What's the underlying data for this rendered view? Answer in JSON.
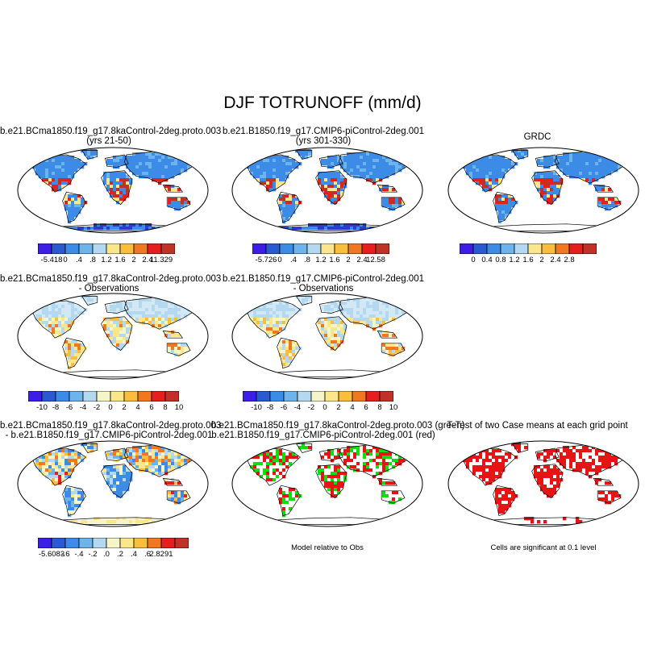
{
  "title": "DJF TOTRUNOFF (mm/d)",
  "panels": [
    {
      "title1": "b.e21.BCma1850.f19_g17.8kaControl-2deg.proto.003",
      "title2": "(yrs 21-50)",
      "style": "abs"
    },
    {
      "title1": "b.e21.B1850.f19_g17.CMIP6-piControl-2deg.001",
      "title2": "(yrs 301-330)",
      "style": "abs"
    },
    {
      "title1": "GRDC",
      "title2": "",
      "style": "obs"
    },
    {
      "title1": "b.e21.BCma1850.f19_g17.8kaControl-2deg.proto.003",
      "title2": "- Observations",
      "style": "diff"
    },
    {
      "title1": "b.e21.B1850.f19_g17.CMIP6-piControl-2deg.001",
      "title2": "- Observations",
      "style": "diff"
    },
    {
      "title1": "b.e21.BCma1850.f19_g17.8kaControl-2deg.proto.003",
      "title2": "- b.e21.B1850.f19_g17.CMIP6-piControl-2deg.001",
      "style": "diff2"
    },
    {
      "title1": "b.e21.BCma1850.f19_g17.8kaControl-2deg.proto.003 (green)",
      "title2": "b.e21.B1850.f19_g17.CMIP6-piControl-2deg.001 (red)",
      "style": "green-red"
    },
    {
      "title1": "T-Test of two Case means at each grid point",
      "title2": "",
      "style": "ttest"
    }
  ],
  "colorbars": [
    {
      "labels": [
        "-5.418",
        "0",
        ".4",
        ".8",
        "1.2",
        "1.6",
        "2",
        "2.4",
        "11.329"
      ],
      "colors": [
        "#3c1ee6",
        "#2a5ad2",
        "#3c8be6",
        "#6eb4ec",
        "#b4d8f0",
        "#fbe68c",
        "#fabe3c",
        "#f07820",
        "#e61e1e",
        "#c03228"
      ]
    },
    {
      "labels": [
        "-5.726",
        "0",
        ".4",
        ".8",
        "1.2",
        "1.6",
        "2",
        "2.4",
        "12.58"
      ],
      "colors": [
        "#3c1ee6",
        "#2a5ad2",
        "#3c8be6",
        "#6eb4ec",
        "#b4d8f0",
        "#fbe68c",
        "#fabe3c",
        "#f07820",
        "#e61e1e",
        "#c03228"
      ]
    },
    {
      "labels": [
        "0",
        "0.4",
        "0.8",
        "1.2",
        "1.6",
        "2",
        "2.4",
        "2.8"
      ],
      "colors": [
        "#3c1ee6",
        "#2a5ad2",
        "#3c8be6",
        "#6eb4ec",
        "#b4d8f0",
        "#fbe68c",
        "#fabe3c",
        "#f07820",
        "#e61e1e",
        "#c03228"
      ]
    },
    {
      "labels": [
        "-10",
        "-8",
        "-6",
        "-4",
        "-2",
        "0",
        "2",
        "4",
        "6",
        "8",
        "10"
      ],
      "colors": [
        "#3c1ee6",
        "#2a5ad2",
        "#3c8be6",
        "#6eb4ec",
        "#b4d8f0",
        "#f5f5c8",
        "#fbe68c",
        "#fabe3c",
        "#f07820",
        "#e61e1e",
        "#c03228"
      ]
    },
    {
      "labels": [
        "-10",
        "-8",
        "-6",
        "-4",
        "-2",
        "0",
        "2",
        "4",
        "6",
        "8",
        "10"
      ],
      "colors": [
        "#3c1ee6",
        "#2a5ad2",
        "#3c8be6",
        "#6eb4ec",
        "#b4d8f0",
        "#f5f5c8",
        "#fbe68c",
        "#fabe3c",
        "#f07820",
        "#e61e1e",
        "#c03228"
      ]
    },
    {
      "labels": [
        "-5.6083",
        "-.6",
        "-.4",
        "-.2",
        ".0",
        ".2",
        ".4",
        ".6",
        "2.8291"
      ],
      "colors": [
        "#3c1ee6",
        "#2a5ad2",
        "#3c8be6",
        "#6eb4ec",
        "#b4d8f0",
        "#f5f5c8",
        "#fbe68c",
        "#fabe3c",
        "#f07820",
        "#e61e1e",
        "#c03228"
      ]
    }
  ],
  "captions": {
    "model_relative": "Model relative to Obs",
    "cells_significant": "Cells are significant at 0.1 level"
  },
  "chart_data": {
    "type": "heatmap",
    "title": "DJF TOTRUNOFF (mm/d)",
    "variable": "TOTRUNOFF",
    "units": "mm/d",
    "season": "DJF",
    "projection": "global map",
    "colorbar_levels": {
      "case_8ka": [
        "-5.418",
        "0",
        ".4",
        ".8",
        "1.2",
        "1.6",
        "2",
        "2.4",
        "11.329"
      ],
      "case_pi": [
        "-5.726",
        "0",
        ".4",
        ".8",
        "1.2",
        "1.6",
        "2",
        "2.4",
        "12.58"
      ],
      "grdc": [
        "0",
        "0.4",
        "0.8",
        "1.2",
        "1.6",
        "2",
        "2.4",
        "2.8"
      ],
      "minus_obs": [
        "-10",
        "-8",
        "-6",
        "-4",
        "-2",
        "0",
        "2",
        "4",
        "6",
        "8",
        "10"
      ],
      "case_diff": [
        "-5.6083",
        "-.6",
        "-.4",
        "-.2",
        ".0",
        ".2",
        ".4",
        ".6",
        "2.8291"
      ]
    }
  }
}
